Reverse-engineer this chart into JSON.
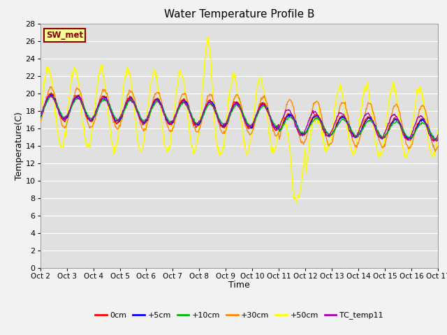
{
  "title": "Water Temperature Profile B",
  "xlabel": "Time",
  "ylabel": "Temperature(C)",
  "ylim": [
    0,
    28
  ],
  "yticks": [
    0,
    2,
    4,
    6,
    8,
    10,
    12,
    14,
    16,
    18,
    20,
    22,
    24,
    26,
    28
  ],
  "x_labels": [
    "Oct 2",
    "Oct 3",
    "Oct 4",
    "Oct 5",
    "Oct 6",
    "Oct 7",
    "Oct 8",
    "Oct 9",
    "Oct 10",
    "Oct 11",
    "Oct 12",
    "Oct 13",
    "Oct 14",
    "Oct 15",
    "Oct 16",
    "Oct 17"
  ],
  "annotation_text": "SW_met",
  "annotation_color": "#8B0000",
  "annotation_bg": "#FFFF99",
  "annotation_border": "#8B0000",
  "series": {
    "0cm": {
      "color": "#FF0000",
      "lw": 1.0
    },
    "+5cm": {
      "color": "#0000FF",
      "lw": 1.0
    },
    "+10cm": {
      "color": "#00BB00",
      "lw": 1.0
    },
    "+30cm": {
      "color": "#FF8800",
      "lw": 1.0
    },
    "+50cm": {
      "color": "#FFFF00",
      "lw": 1.2
    },
    "TC_temp11": {
      "color": "#AA00AA",
      "lw": 1.0
    }
  },
  "plot_bg": "#E0E0E0",
  "grid_color": "#FFFFFF",
  "fig_bg": "#F2F2F2"
}
